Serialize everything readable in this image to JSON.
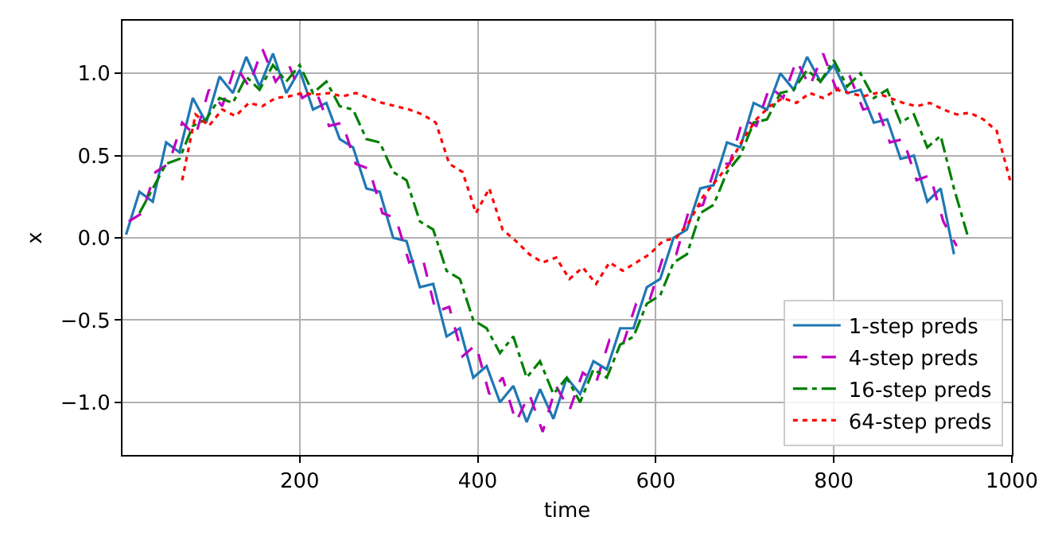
{
  "chart_data": {
    "type": "line",
    "xlabel": "time",
    "ylabel": "x",
    "xlim": [
      1,
      1000
    ],
    "ylim": [
      -1.32,
      1.32
    ],
    "xticks": [
      200,
      400,
      600,
      800,
      1000
    ],
    "yticks": [
      {
        "value": -1.0,
        "label": "−1.0"
      },
      {
        "value": -0.5,
        "label": "−0.5"
      },
      {
        "value": 0.0,
        "label": "0.0"
      },
      {
        "value": 0.5,
        "label": "0.5"
      },
      {
        "value": 1.0,
        "label": "1.0"
      }
    ],
    "grid": true,
    "legend": "bottom right",
    "series": [
      {
        "name": "1-step preds",
        "color": "#1f77b4",
        "line_style": "solid",
        "x": [
          5,
          20,
          35,
          50,
          65,
          80,
          95,
          110,
          125,
          140,
          155,
          170,
          185,
          200,
          215,
          230,
          245,
          260,
          275,
          290,
          305,
          320,
          335,
          350,
          365,
          380,
          395,
          410,
          425,
          440,
          455,
          470,
          485,
          500,
          515,
          530,
          545,
          560,
          575,
          590,
          605,
          620,
          635,
          650,
          665,
          680,
          695,
          710,
          725,
          740,
          755,
          770,
          785,
          800,
          815,
          830,
          845,
          860,
          875,
          890,
          905,
          920,
          935
        ],
        "values": [
          0.02,
          0.28,
          0.22,
          0.58,
          0.52,
          0.85,
          0.7,
          0.98,
          0.88,
          1.1,
          0.92,
          1.12,
          0.88,
          1.02,
          0.78,
          0.82,
          0.6,
          0.55,
          0.3,
          0.28,
          0.0,
          -0.02,
          -0.3,
          -0.28,
          -0.6,
          -0.55,
          -0.85,
          -0.78,
          -1.0,
          -0.9,
          -1.12,
          -0.92,
          -1.1,
          -0.85,
          -0.95,
          -0.75,
          -0.8,
          -0.55,
          -0.55,
          -0.3,
          -0.25,
          0.0,
          0.05,
          0.3,
          0.32,
          0.58,
          0.55,
          0.82,
          0.78,
          1.0,
          0.9,
          1.1,
          0.95,
          1.05,
          0.88,
          0.9,
          0.7,
          0.72,
          0.48,
          0.5,
          0.22,
          0.3,
          -0.1
        ]
      },
      {
        "name": "4-step preds",
        "color": "#bf00bf",
        "line_style": "dashed",
        "x": [
          8,
          23,
          38,
          53,
          68,
          83,
          98,
          113,
          128,
          143,
          158,
          173,
          188,
          203,
          218,
          233,
          248,
          263,
          278,
          293,
          308,
          323,
          338,
          353,
          368,
          383,
          398,
          413,
          428,
          443,
          458,
          473,
          488,
          503,
          518,
          533,
          548,
          563,
          578,
          593,
          608,
          623,
          638,
          653,
          668,
          683,
          698,
          713,
          728,
          743,
          758,
          773,
          788,
          803,
          818,
          833,
          848,
          863,
          878,
          893,
          908,
          923,
          938
        ],
        "values": [
          0.1,
          0.15,
          0.4,
          0.45,
          0.7,
          0.62,
          0.9,
          0.8,
          1.05,
          0.92,
          1.15,
          0.95,
          1.05,
          0.85,
          0.9,
          0.68,
          0.7,
          0.45,
          0.42,
          0.15,
          0.12,
          -0.15,
          -0.12,
          -0.45,
          -0.42,
          -0.72,
          -0.65,
          -0.95,
          -0.85,
          -1.12,
          -0.95,
          -1.18,
          -0.9,
          -1.05,
          -0.82,
          -0.88,
          -0.62,
          -0.65,
          -0.4,
          -0.38,
          -0.12,
          -0.1,
          0.18,
          0.2,
          0.45,
          0.45,
          0.72,
          0.68,
          0.92,
          0.85,
          1.08,
          0.92,
          1.12,
          0.9,
          0.98,
          0.78,
          0.8,
          0.58,
          0.6,
          0.35,
          0.38,
          0.1,
          -0.05
        ]
      },
      {
        "name": "16-step preds",
        "color": "#008000",
        "line_style": "dashdot",
        "x": [
          20,
          35,
          50,
          65,
          80,
          95,
          110,
          125,
          140,
          155,
          170,
          185,
          200,
          215,
          230,
          245,
          260,
          275,
          290,
          305,
          320,
          335,
          350,
          365,
          380,
          395,
          410,
          425,
          440,
          455,
          470,
          485,
          500,
          515,
          530,
          545,
          560,
          575,
          590,
          605,
          620,
          635,
          650,
          665,
          680,
          695,
          710,
          725,
          740,
          755,
          770,
          785,
          800,
          815,
          830,
          845,
          860,
          875,
          890,
          905,
          920,
          935,
          950
        ],
        "values": [
          0.15,
          0.3,
          0.45,
          0.48,
          0.68,
          0.72,
          0.85,
          0.82,
          0.98,
          0.9,
          1.05,
          0.95,
          1.05,
          0.88,
          0.95,
          0.8,
          0.78,
          0.6,
          0.58,
          0.4,
          0.35,
          0.1,
          0.05,
          -0.2,
          -0.25,
          -0.5,
          -0.55,
          -0.7,
          -0.6,
          -0.85,
          -0.75,
          -0.95,
          -0.85,
          -1.0,
          -0.8,
          -0.85,
          -0.65,
          -0.6,
          -0.4,
          -0.35,
          -0.15,
          -0.1,
          0.15,
          0.2,
          0.4,
          0.5,
          0.7,
          0.72,
          0.88,
          0.9,
          1.02,
          0.95,
          1.08,
          0.92,
          1.0,
          0.85,
          0.9,
          0.7,
          0.75,
          0.55,
          0.62,
          0.3,
          0.02
        ]
      },
      {
        "name": "64-step preds",
        "color": "#ff0000",
        "line_style": "dotted",
        "x": [
          68,
          83,
          98,
          113,
          128,
          143,
          158,
          173,
          188,
          203,
          218,
          233,
          248,
          263,
          278,
          293,
          308,
          323,
          338,
          353,
          368,
          383,
          398,
          413,
          428,
          443,
          458,
          473,
          488,
          503,
          518,
          533,
          548,
          563,
          578,
          593,
          608,
          623,
          638,
          653,
          668,
          683,
          698,
          713,
          728,
          743,
          758,
          773,
          788,
          803,
          818,
          833,
          848,
          863,
          878,
          893,
          908,
          923,
          938,
          953,
          968,
          983,
          998
        ],
        "values": [
          0.35,
          0.75,
          0.68,
          0.78,
          0.74,
          0.82,
          0.8,
          0.85,
          0.86,
          0.88,
          0.87,
          0.88,
          0.86,
          0.88,
          0.85,
          0.82,
          0.8,
          0.78,
          0.75,
          0.7,
          0.45,
          0.4,
          0.15,
          0.3,
          0.05,
          -0.02,
          -0.1,
          -0.15,
          -0.12,
          -0.25,
          -0.18,
          -0.28,
          -0.15,
          -0.2,
          -0.15,
          -0.1,
          -0.02,
          0.0,
          0.1,
          0.25,
          0.35,
          0.45,
          0.6,
          0.72,
          0.8,
          0.85,
          0.82,
          0.88,
          0.85,
          0.9,
          0.88,
          0.86,
          0.88,
          0.85,
          0.82,
          0.8,
          0.82,
          0.78,
          0.75,
          0.76,
          0.72,
          0.65,
          0.35
        ]
      }
    ]
  }
}
